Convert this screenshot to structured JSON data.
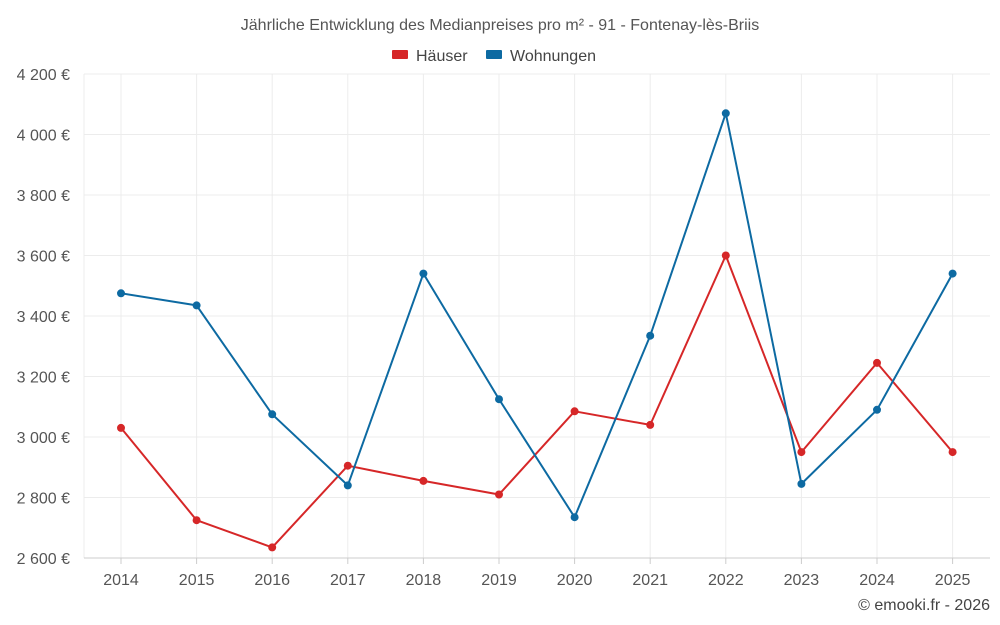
{
  "chart_data": {
    "type": "line",
    "title": "Jährliche Entwicklung des Medianpreises pro m² - 91 - Fontenay-lès-Briis",
    "xlabel": "",
    "ylabel": "",
    "categories": [
      "2014",
      "2015",
      "2016",
      "2017",
      "2018",
      "2019",
      "2020",
      "2021",
      "2022",
      "2023",
      "2024",
      "2025"
    ],
    "ylim": [
      2600,
      4200
    ],
    "yticks": [
      2600,
      2800,
      3000,
      3200,
      3400,
      3600,
      3800,
      4000,
      4200
    ],
    "ytick_labels": [
      "2 600 €",
      "2 800 €",
      "3 000 €",
      "3 200 €",
      "3 400 €",
      "3 600 €",
      "3 800 €",
      "4 000 €",
      "4 200 €"
    ],
    "grid": true,
    "legend_position": "top-center",
    "series": [
      {
        "name": "Häuser",
        "color": "#d62728",
        "values": [
          3030,
          2725,
          2635,
          2905,
          2855,
          2810,
          3085,
          3040,
          3600,
          2950,
          3245,
          2950
        ]
      },
      {
        "name": "Wohnungen",
        "color": "#0d6aa2",
        "values": [
          3475,
          3435,
          3075,
          2840,
          3540,
          3125,
          2735,
          3335,
          4070,
          2845,
          3090,
          3540
        ]
      }
    ]
  },
  "credit": "© emooki.fr - 2026"
}
